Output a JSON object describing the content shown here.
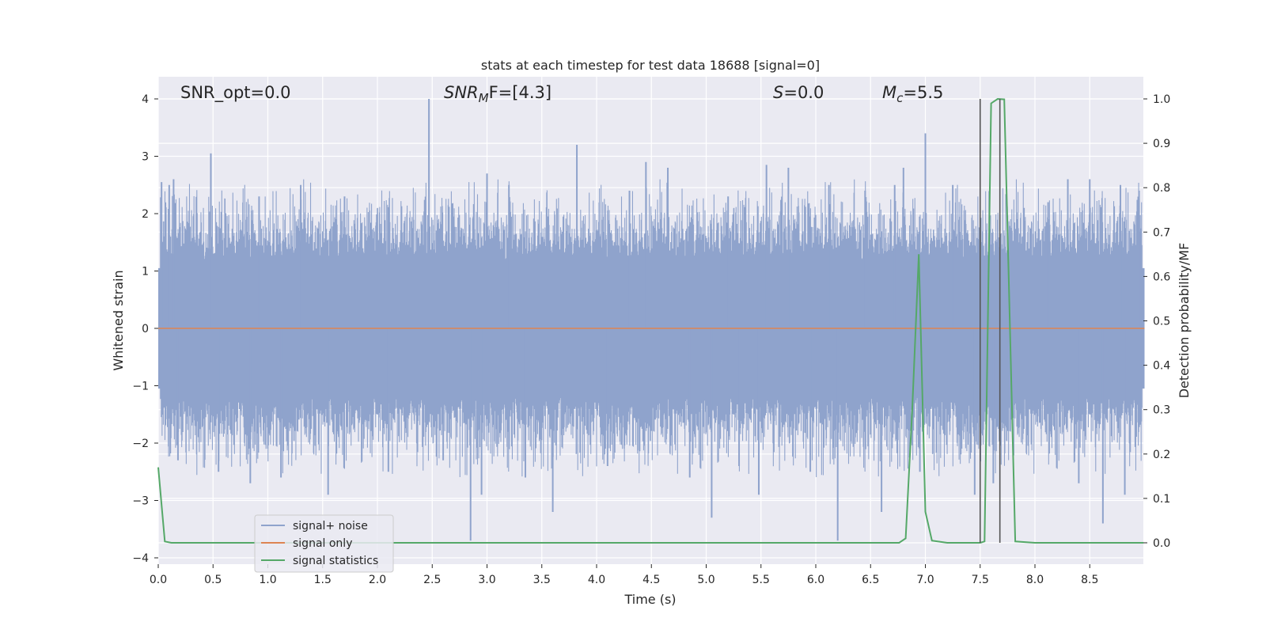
{
  "chart_data": {
    "type": "line",
    "title": "stats at each timestep for test data 18688 [signal=0]",
    "xlabel": "Time (s)",
    "ylabel_left": "Whitened strain",
    "ylabel_right": "Detection probability/MF",
    "xlim": [
      0.0,
      9.0
    ],
    "ylim_left": [
      -4.2,
      4.4
    ],
    "ylim_right": [
      -0.045,
      1.045
    ],
    "x_ticks": [
      "0.0",
      "0.5",
      "1.0",
      "1.5",
      "2.0",
      "2.5",
      "3.0",
      "3.5",
      "4.0",
      "4.5",
      "5.0",
      "5.5",
      "6.0",
      "6.5",
      "7.0",
      "7.5",
      "8.0",
      "8.5"
    ],
    "y_ticks_left": [
      "4",
      "3",
      "2",
      "1",
      "0",
      "−1",
      "−2",
      "−3",
      "−4"
    ],
    "y_ticks_right": [
      "1.0",
      "0.9",
      "0.8",
      "0.7",
      "0.6",
      "0.5",
      "0.4",
      "0.3",
      "0.2",
      "0.1",
      "0.0"
    ],
    "grid": true,
    "legend_position": "lower-left",
    "annotations": {
      "snr_opt": "SNR_opt=0.0",
      "snr_mf_main": "SNR",
      "snr_mf_sub": "M",
      "snr_mf_rest": "F=[4.3]",
      "s_main": "S",
      "s_rest": "=0.0",
      "mc_main": "M",
      "mc_sub": "c",
      "mc_rest": "=5.5"
    },
    "series": [
      {
        "name": "signal+ noise",
        "color": "#8fa3cc",
        "description_values": "whitened noise, mostly within [-1.5, 1.5], peaks near 4.0 at t≈2.47"
      },
      {
        "name": "signal only",
        "color": "#dd8452",
        "values_constant": 0.0
      },
      {
        "name": "signal statistics",
        "color": "#55a868",
        "x": [
          0.0,
          0.06,
          0.12,
          0.5,
          1.0,
          2.0,
          3.0,
          4.0,
          5.0,
          6.0,
          6.5,
          6.76,
          6.82,
          6.88,
          6.94,
          7.0,
          7.06,
          7.2,
          7.5,
          7.54,
          7.6,
          7.66,
          7.72,
          7.76,
          7.82,
          8.0,
          8.5,
          8.99
        ],
        "y": [
          0.17,
          0.003,
          0.0,
          0.0,
          0.0,
          0.0,
          0.0,
          0.0,
          0.0,
          0.0,
          0.0,
          0.0,
          0.01,
          0.3,
          0.65,
          0.07,
          0.005,
          0.0,
          0.0,
          0.003,
          0.99,
          1.0,
          0.999,
          0.6,
          0.003,
          0.0,
          0.0,
          0.0
        ]
      }
    ],
    "vertical_lines": [
      {
        "x": 7.5,
        "from": 0.0,
        "to": 1.0,
        "color": "#555555"
      },
      {
        "x": 7.68,
        "from": 0.0,
        "to": 1.0,
        "color": "#555555"
      }
    ],
    "noise_spikes": [
      [
        0.03,
        2.55
      ],
      [
        0.1,
        2.5
      ],
      [
        0.14,
        2.6
      ],
      [
        0.18,
        -2.3
      ],
      [
        0.48,
        3.05
      ],
      [
        0.55,
        -2.5
      ],
      [
        0.84,
        -2.7
      ],
      [
        0.92,
        2.3
      ],
      [
        1.12,
        -2.6
      ],
      [
        1.3,
        2.5
      ],
      [
        1.55,
        -2.9
      ],
      [
        1.7,
        2.3
      ],
      [
        2.1,
        -2.5
      ],
      [
        2.47,
        4.0
      ],
      [
        2.6,
        -2.3
      ],
      [
        2.85,
        -3.7
      ],
      [
        2.95,
        -2.9
      ],
      [
        3.0,
        2.7
      ],
      [
        3.2,
        2.5
      ],
      [
        3.35,
        -2.6
      ],
      [
        3.6,
        -3.2
      ],
      [
        3.82,
        3.2
      ],
      [
        4.1,
        -2.4
      ],
      [
        4.3,
        2.4
      ],
      [
        4.45,
        2.9
      ],
      [
        4.65,
        2.8
      ],
      [
        4.85,
        -2.6
      ],
      [
        5.05,
        -3.3
      ],
      [
        5.2,
        2.3
      ],
      [
        5.3,
        -2.4
      ],
      [
        5.48,
        -2.9
      ],
      [
        5.55,
        2.85
      ],
      [
        5.75,
        2.8
      ],
      [
        5.95,
        -2.5
      ],
      [
        6.12,
        2.5
      ],
      [
        6.2,
        -3.7
      ],
      [
        6.45,
        2.4
      ],
      [
        6.6,
        -3.2
      ],
      [
        6.72,
        2.5
      ],
      [
        6.8,
        2.8
      ],
      [
        6.95,
        -2.5
      ],
      [
        7.0,
        3.4
      ],
      [
        7.25,
        2.5
      ],
      [
        7.45,
        -2.9
      ],
      [
        7.62,
        -2.7
      ],
      [
        7.9,
        2.1
      ],
      [
        8.12,
        2.2
      ],
      [
        8.3,
        2.6
      ],
      [
        8.4,
        -2.7
      ],
      [
        8.5,
        2.6
      ],
      [
        8.62,
        -3.4
      ],
      [
        8.78,
        2.5
      ],
      [
        8.82,
        -2.9
      ],
      [
        8.95,
        2.4
      ]
    ]
  }
}
